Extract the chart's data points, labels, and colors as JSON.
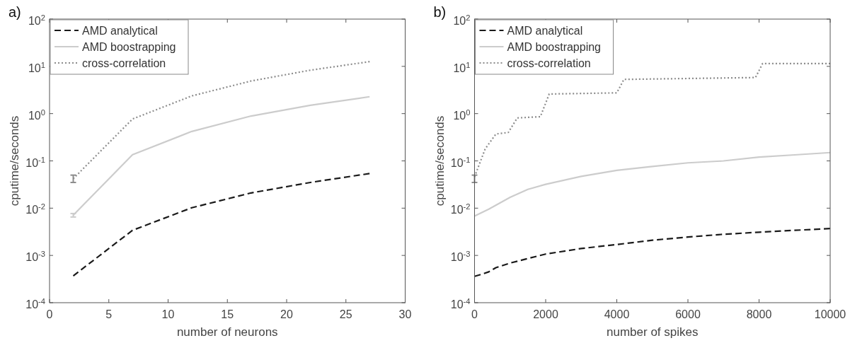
{
  "chart_data": [
    {
      "type": "line",
      "title": "a)",
      "xlabel": "number of neurons",
      "ylabel": "cputime/seconds",
      "log": "y",
      "legend": "top left",
      "xlim": [
        0,
        30
      ],
      "xticks": [
        0,
        5,
        10,
        15,
        20,
        25,
        30
      ],
      "ylim": [
        0.0001,
        100
      ],
      "yticks": [
        {
          "value": 0.0001,
          "label": "10$^{-4}$"
        },
        {
          "value": 0.001,
          "label": "10$^{-3}$"
        },
        {
          "value": 0.01,
          "label": "10$^{-2}$"
        },
        {
          "value": 0.1,
          "label": "10$^{-1}$"
        },
        {
          "value": 1,
          "label": "10$^{0}$"
        },
        {
          "value": 10,
          "label": "10$^{1}$"
        },
        {
          "value": 100,
          "label": "10$^{2}$"
        }
      ],
      "x": [
        2,
        7,
        12,
        17,
        22,
        27
      ],
      "series": [
        {
          "name": "AMD analytical",
          "color": "#1a1a1a",
          "line_style": "dashed",
          "values": [
            0.00037,
            0.0034,
            0.0102,
            0.021,
            0.035,
            0.054
          ]
        },
        {
          "name": "AMD boostrapping",
          "color": "#cccccc",
          "line_style": "solid",
          "values": [
            0.0071,
            0.135,
            0.42,
            0.89,
            1.5,
            2.28
          ],
          "errors": [
            [
              0.0065,
              0.0077
            ],
            null,
            null,
            null,
            null,
            null
          ]
        },
        {
          "name": "cross-correlation",
          "color": "#8c8c8c",
          "line_style": "dotted",
          "values": [
            0.042,
            0.77,
            2.37,
            4.9,
            8.3,
            12.6
          ],
          "errors": [
            [
              0.035,
              0.05
            ],
            null,
            null,
            null,
            null,
            null
          ]
        }
      ]
    },
    {
      "type": "line",
      "title": "b)",
      "xlabel": "number of spikes",
      "ylabel": "cputime/seconds",
      "log": "y",
      "legend": "top left",
      "xlim": [
        0,
        10000
      ],
      "xticks": [
        0,
        2000,
        4000,
        6000,
        8000,
        10000
      ],
      "ylim": [
        0.0001,
        100
      ],
      "yticks": [
        {
          "value": 0.0001,
          "label": "10$^{-4}$"
        },
        {
          "value": 0.001,
          "label": "10$^{-3}$"
        },
        {
          "value": 0.01,
          "label": "10$^{-2}$"
        },
        {
          "value": 0.1,
          "label": "10$^{-1}$"
        },
        {
          "value": 1,
          "label": "10$^{0}$"
        },
        {
          "value": 10,
          "label": "10$^{1}$"
        },
        {
          "value": 100,
          "label": "10$^{2}$"
        }
      ],
      "series": [
        {
          "name": "AMD analytical",
          "color": "#1a1a1a",
          "line_style": "dashed",
          "x": [
            0,
            200,
            400,
            600,
            1000,
            2000,
            3000,
            4000,
            5000,
            6000,
            7000,
            8000,
            9000,
            10000
          ],
          "values": [
            0.00036,
            0.0004,
            0.00045,
            0.00055,
            0.00069,
            0.00107,
            0.0014,
            0.0017,
            0.0021,
            0.00245,
            0.0028,
            0.0031,
            0.0034,
            0.0037
          ]
        },
        {
          "name": "AMD boostrapping",
          "color": "#cccccc",
          "line_style": "solid",
          "x": [
            0,
            400,
            1000,
            1500,
            2000,
            3000,
            4000,
            5000,
            6000,
            7000,
            8000,
            9000,
            10000
          ],
          "values": [
            0.0068,
            0.0095,
            0.017,
            0.025,
            0.032,
            0.047,
            0.063,
            0.076,
            0.091,
            0.1,
            0.12,
            0.134,
            0.15
          ]
        },
        {
          "name": "cross-correlation",
          "color": "#8c8c8c",
          "line_style": "dotted",
          "x": [
            0,
            300,
            600,
            950,
            1200,
            1850,
            2100,
            4000,
            4200,
            7900,
            8100,
            10000
          ],
          "values": [
            0.046,
            0.18,
            0.37,
            0.4,
            0.81,
            0.86,
            2.6,
            2.75,
            5.3,
            5.8,
            11.5,
            11.5
          ],
          "errors": [
            [
              0.035,
              0.05
            ],
            null,
            null,
            null,
            null,
            null,
            null,
            null,
            null,
            null,
            null,
            null
          ]
        }
      ]
    }
  ]
}
